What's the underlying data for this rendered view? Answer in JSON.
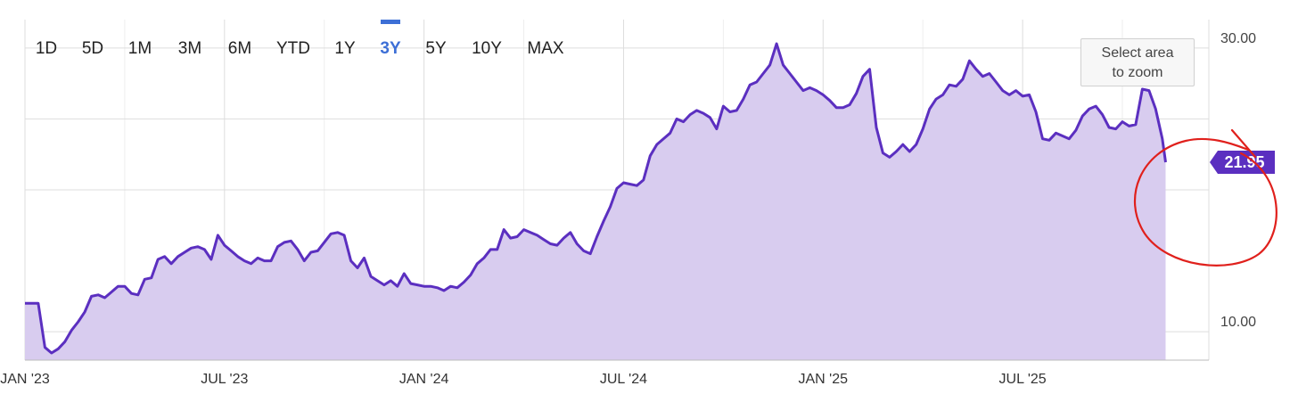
{
  "range_buttons": [
    {
      "label": "1D"
    },
    {
      "label": "5D"
    },
    {
      "label": "1M"
    },
    {
      "label": "3M"
    },
    {
      "label": "6M"
    },
    {
      "label": "YTD"
    },
    {
      "label": "1Y"
    },
    {
      "label": "3Y",
      "active": true
    },
    {
      "label": "5Y"
    },
    {
      "label": "10Y"
    },
    {
      "label": "MAX"
    }
  ],
  "zoom_hint": {
    "line1": "Select area",
    "line2": "to zoom"
  },
  "current_price_label": "21.95",
  "colors": {
    "line": "#5b2fc0",
    "fill": "#d8ccef",
    "active_button": "#3d6fd6",
    "annotation": "#e0201c",
    "grid": "#dddddd"
  },
  "chart_data": {
    "type": "area",
    "x_ticks": [
      "JAN '23",
      "JUL '23",
      "JAN '24",
      "JUL '24",
      "JAN '25",
      "JUL '25"
    ],
    "y_ticks": [
      "10.00",
      "30.00"
    ],
    "ylim": [
      8,
      32
    ],
    "xlim": [
      0,
      35.6
    ],
    "grid": true,
    "annotation": "red circle highlighting recent drop",
    "last_value": 21.95,
    "points": [
      [
        0,
        12.0
      ],
      [
        0.4,
        12.0
      ],
      [
        0.6,
        8.9
      ],
      [
        0.8,
        8.5
      ],
      [
        1.0,
        8.8
      ],
      [
        1.2,
        9.3
      ],
      [
        1.4,
        10.1
      ],
      [
        1.6,
        10.7
      ],
      [
        1.8,
        11.4
      ],
      [
        2.0,
        12.5
      ],
      [
        2.2,
        12.6
      ],
      [
        2.4,
        12.4
      ],
      [
        2.6,
        12.8
      ],
      [
        2.8,
        13.2
      ],
      [
        3.0,
        13.2
      ],
      [
        3.2,
        12.7
      ],
      [
        3.4,
        12.6
      ],
      [
        3.6,
        13.7
      ],
      [
        3.8,
        13.8
      ],
      [
        4.0,
        15.1
      ],
      [
        4.2,
        15.3
      ],
      [
        4.4,
        14.8
      ],
      [
        4.6,
        15.3
      ],
      [
        4.8,
        15.6
      ],
      [
        5.0,
        15.9
      ],
      [
        5.2,
        16.0
      ],
      [
        5.4,
        15.8
      ],
      [
        5.6,
        15.1
      ],
      [
        5.8,
        16.8
      ],
      [
        6.0,
        16.1
      ],
      [
        6.2,
        15.7
      ],
      [
        6.4,
        15.3
      ],
      [
        6.6,
        15.0
      ],
      [
        6.8,
        14.8
      ],
      [
        7.0,
        15.2
      ],
      [
        7.2,
        15.0
      ],
      [
        7.4,
        15.0
      ],
      [
        7.6,
        16.0
      ],
      [
        7.8,
        16.3
      ],
      [
        8.0,
        16.4
      ],
      [
        8.2,
        15.8
      ],
      [
        8.4,
        15.0
      ],
      [
        8.6,
        15.6
      ],
      [
        8.8,
        15.7
      ],
      [
        9.0,
        16.3
      ],
      [
        9.2,
        16.9
      ],
      [
        9.4,
        17.0
      ],
      [
        9.6,
        16.8
      ],
      [
        9.8,
        15.0
      ],
      [
        10.0,
        14.5
      ],
      [
        10.2,
        15.2
      ],
      [
        10.4,
        13.9
      ],
      [
        10.6,
        13.6
      ],
      [
        10.8,
        13.3
      ],
      [
        11.0,
        13.6
      ],
      [
        11.2,
        13.2
      ],
      [
        11.4,
        14.1
      ],
      [
        11.6,
        13.4
      ],
      [
        11.8,
        13.3
      ],
      [
        12.0,
        13.2
      ],
      [
        12.2,
        13.2
      ],
      [
        12.4,
        13.1
      ],
      [
        12.6,
        12.9
      ],
      [
        12.8,
        13.2
      ],
      [
        13.0,
        13.1
      ],
      [
        13.2,
        13.5
      ],
      [
        13.4,
        14.0
      ],
      [
        13.6,
        14.8
      ],
      [
        13.8,
        15.2
      ],
      [
        14.0,
        15.8
      ],
      [
        14.2,
        15.8
      ],
      [
        14.4,
        17.2
      ],
      [
        14.6,
        16.6
      ],
      [
        14.8,
        16.7
      ],
      [
        15.0,
        17.2
      ],
      [
        15.2,
        17.0
      ],
      [
        15.4,
        16.8
      ],
      [
        15.6,
        16.5
      ],
      [
        15.8,
        16.2
      ],
      [
        16.0,
        16.1
      ],
      [
        16.2,
        16.6
      ],
      [
        16.4,
        17.0
      ],
      [
        16.6,
        16.2
      ],
      [
        16.8,
        15.7
      ],
      [
        17.0,
        15.5
      ],
      [
        17.2,
        16.7
      ],
      [
        17.4,
        17.8
      ],
      [
        17.6,
        18.8
      ],
      [
        17.8,
        20.1
      ],
      [
        18.0,
        20.5
      ],
      [
        18.2,
        20.4
      ],
      [
        18.4,
        20.3
      ],
      [
        18.6,
        20.7
      ],
      [
        18.8,
        22.4
      ],
      [
        19.0,
        23.2
      ],
      [
        19.2,
        23.6
      ],
      [
        19.4,
        24.0
      ],
      [
        19.6,
        25.0
      ],
      [
        19.8,
        24.8
      ],
      [
        20.0,
        25.3
      ],
      [
        20.2,
        25.6
      ],
      [
        20.4,
        25.4
      ],
      [
        20.6,
        25.1
      ],
      [
        20.8,
        24.3
      ],
      [
        21.0,
        25.9
      ],
      [
        21.2,
        25.5
      ],
      [
        21.4,
        25.6
      ],
      [
        21.6,
        26.4
      ],
      [
        21.8,
        27.4
      ],
      [
        22.0,
        27.6
      ],
      [
        22.2,
        28.2
      ],
      [
        22.4,
        28.8
      ],
      [
        22.6,
        30.3
      ],
      [
        22.8,
        28.8
      ],
      [
        23.0,
        28.2
      ],
      [
        23.2,
        27.6
      ],
      [
        23.4,
        27.0
      ],
      [
        23.6,
        27.2
      ],
      [
        23.8,
        27.0
      ],
      [
        24.0,
        26.7
      ],
      [
        24.2,
        26.3
      ],
      [
        24.4,
        25.8
      ],
      [
        24.6,
        25.8
      ],
      [
        24.8,
        26.0
      ],
      [
        25.0,
        26.8
      ],
      [
        25.2,
        28.0
      ],
      [
        25.4,
        28.5
      ],
      [
        25.6,
        24.4
      ],
      [
        25.8,
        22.6
      ],
      [
        26.0,
        22.3
      ],
      [
        26.2,
        22.7
      ],
      [
        26.4,
        23.2
      ],
      [
        26.6,
        22.7
      ],
      [
        26.8,
        23.2
      ],
      [
        27.0,
        24.3
      ],
      [
        27.2,
        25.7
      ],
      [
        27.4,
        26.4
      ],
      [
        27.6,
        26.7
      ],
      [
        27.8,
        27.4
      ],
      [
        28.0,
        27.3
      ],
      [
        28.2,
        27.8
      ],
      [
        28.4,
        29.1
      ],
      [
        28.6,
        28.5
      ],
      [
        28.8,
        28.0
      ],
      [
        29.0,
        28.2
      ],
      [
        29.2,
        27.6
      ],
      [
        29.4,
        27.0
      ],
      [
        29.6,
        26.7
      ],
      [
        29.8,
        27.0
      ],
      [
        30.0,
        26.6
      ],
      [
        30.2,
        26.7
      ],
      [
        30.4,
        25.5
      ],
      [
        30.6,
        23.6
      ],
      [
        30.8,
        23.5
      ],
      [
        31.0,
        24.0
      ],
      [
        31.2,
        23.8
      ],
      [
        31.4,
        23.6
      ],
      [
        31.6,
        24.2
      ],
      [
        31.8,
        25.2
      ],
      [
        32.0,
        25.7
      ],
      [
        32.2,
        25.9
      ],
      [
        32.4,
        25.3
      ],
      [
        32.6,
        24.4
      ],
      [
        32.8,
        24.3
      ],
      [
        33.0,
        24.8
      ],
      [
        33.2,
        24.5
      ],
      [
        33.4,
        24.6
      ],
      [
        33.6,
        27.1
      ],
      [
        33.8,
        27.0
      ],
      [
        34.0,
        25.7
      ],
      [
        34.2,
        23.6
      ],
      [
        34.3,
        21.95
      ]
    ]
  }
}
